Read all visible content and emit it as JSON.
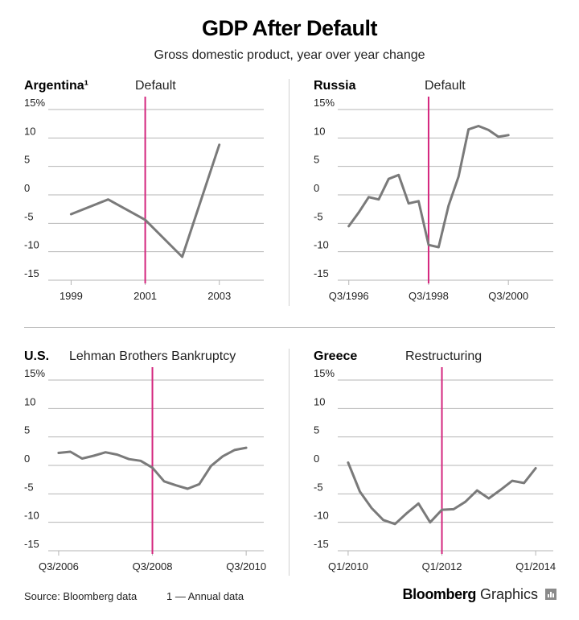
{
  "title": "GDP After Default",
  "subtitle": "Gross domestic product, year over year change",
  "colors": {
    "line": "#7a7a7a",
    "event": "#d4267e",
    "axis": "#b5b5b5"
  },
  "footer": {
    "source": "Source: Bloomberg data",
    "note": "1 — Annual data",
    "brand_bold": "Bloomberg",
    "brand_light": "Graphics"
  },
  "chart_data": [
    {
      "type": "line",
      "panel": "Argentina¹",
      "event_label": "Default",
      "event_x": 2001,
      "xlim": [
        1998.6,
        2004.2
      ],
      "ylim": [
        -15,
        15
      ],
      "yticks": [
        15,
        10,
        5,
        0,
        -5,
        -10,
        -15
      ],
      "ytick_labels": [
        "15%",
        "10",
        "5",
        "0",
        "-5",
        "-10",
        "-15"
      ],
      "xticks": [
        1999,
        2001,
        2003
      ],
      "xtick_labels": [
        "1999",
        "2001",
        "2003"
      ],
      "x": [
        1999,
        2000,
        2001,
        2002,
        2003
      ],
      "y": [
        -3.4,
        -0.8,
        -4.4,
        -10.9,
        8.8
      ]
    },
    {
      "type": "line",
      "panel": "Russia",
      "event_label": "Default",
      "event_x": 8,
      "xlim": [
        -0.3,
        20.5
      ],
      "ylim": [
        -15,
        15
      ],
      "yticks": [
        15,
        10,
        5,
        0,
        -5,
        -10,
        -15
      ],
      "ytick_labels": [
        "15%",
        "10",
        "5",
        "0",
        "-5",
        "-10",
        "-15"
      ],
      "xticks": [
        0,
        8,
        16
      ],
      "xtick_labels": [
        "Q3/1996",
        "Q3/1998",
        "Q3/2000"
      ],
      "x": [
        0,
        1,
        2,
        3,
        4,
        5,
        6,
        7,
        8,
        9,
        10,
        11,
        12,
        13,
        14,
        15,
        16
      ],
      "y": [
        -5.5,
        -3.1,
        -0.4,
        -0.8,
        2.8,
        3.5,
        -1.5,
        -1.1,
        -8.8,
        -9.2,
        -1.9,
        3.2,
        11.5,
        12.1,
        11.4,
        10.2,
        10.5
      ]
    },
    {
      "type": "line",
      "panel": "U.S.",
      "event_label": "Lehman Brothers Bankruptcy",
      "event_x": 8,
      "xlim": [
        -0.2,
        17.5
      ],
      "ylim": [
        -15,
        15
      ],
      "yticks": [
        15,
        10,
        5,
        0,
        -5,
        -10,
        -15
      ],
      "ytick_labels": [
        "15%",
        "10",
        "5",
        "0",
        "-5",
        "-10",
        "-15"
      ],
      "xticks": [
        0,
        8,
        16
      ],
      "xtick_labels": [
        "Q3/2006",
        "Q3/2008",
        "Q3/2010"
      ],
      "x": [
        0,
        1,
        2,
        3,
        4,
        5,
        6,
        7,
        8,
        9,
        10,
        11,
        12,
        13,
        14,
        15,
        16
      ],
      "y": [
        2.2,
        2.4,
        1.2,
        1.7,
        2.3,
        1.9,
        1.1,
        0.8,
        -0.4,
        -2.8,
        -3.5,
        -4.1,
        -3.3,
        -0.1,
        1.6,
        2.7,
        3.1
      ]
    },
    {
      "type": "line",
      "panel": "Greece",
      "event_label": "Restructuring",
      "event_x": 8,
      "xlim": [
        -0.2,
        17.5
      ],
      "ylim": [
        -15,
        15
      ],
      "yticks": [
        15,
        10,
        5,
        0,
        -5,
        -10,
        -15
      ],
      "ytick_labels": [
        "15%",
        "10",
        "5",
        "0",
        "-5",
        "-10",
        "-15"
      ],
      "xticks": [
        0,
        8,
        16
      ],
      "xtick_labels": [
        "Q1/2010",
        "Q1/2012",
        "Q1/2014"
      ],
      "x": [
        0,
        1,
        2,
        3,
        4,
        5,
        6,
        7,
        8,
        9,
        10,
        11,
        12,
        13,
        14,
        15,
        16
      ],
      "y": [
        0.5,
        -4.6,
        -7.5,
        -9.6,
        -10.3,
        -8.4,
        -6.7,
        -10.0,
        -7.8,
        -7.7,
        -6.4,
        -4.4,
        -5.8,
        -4.3,
        -2.7,
        -3.1,
        -0.5
      ]
    }
  ]
}
